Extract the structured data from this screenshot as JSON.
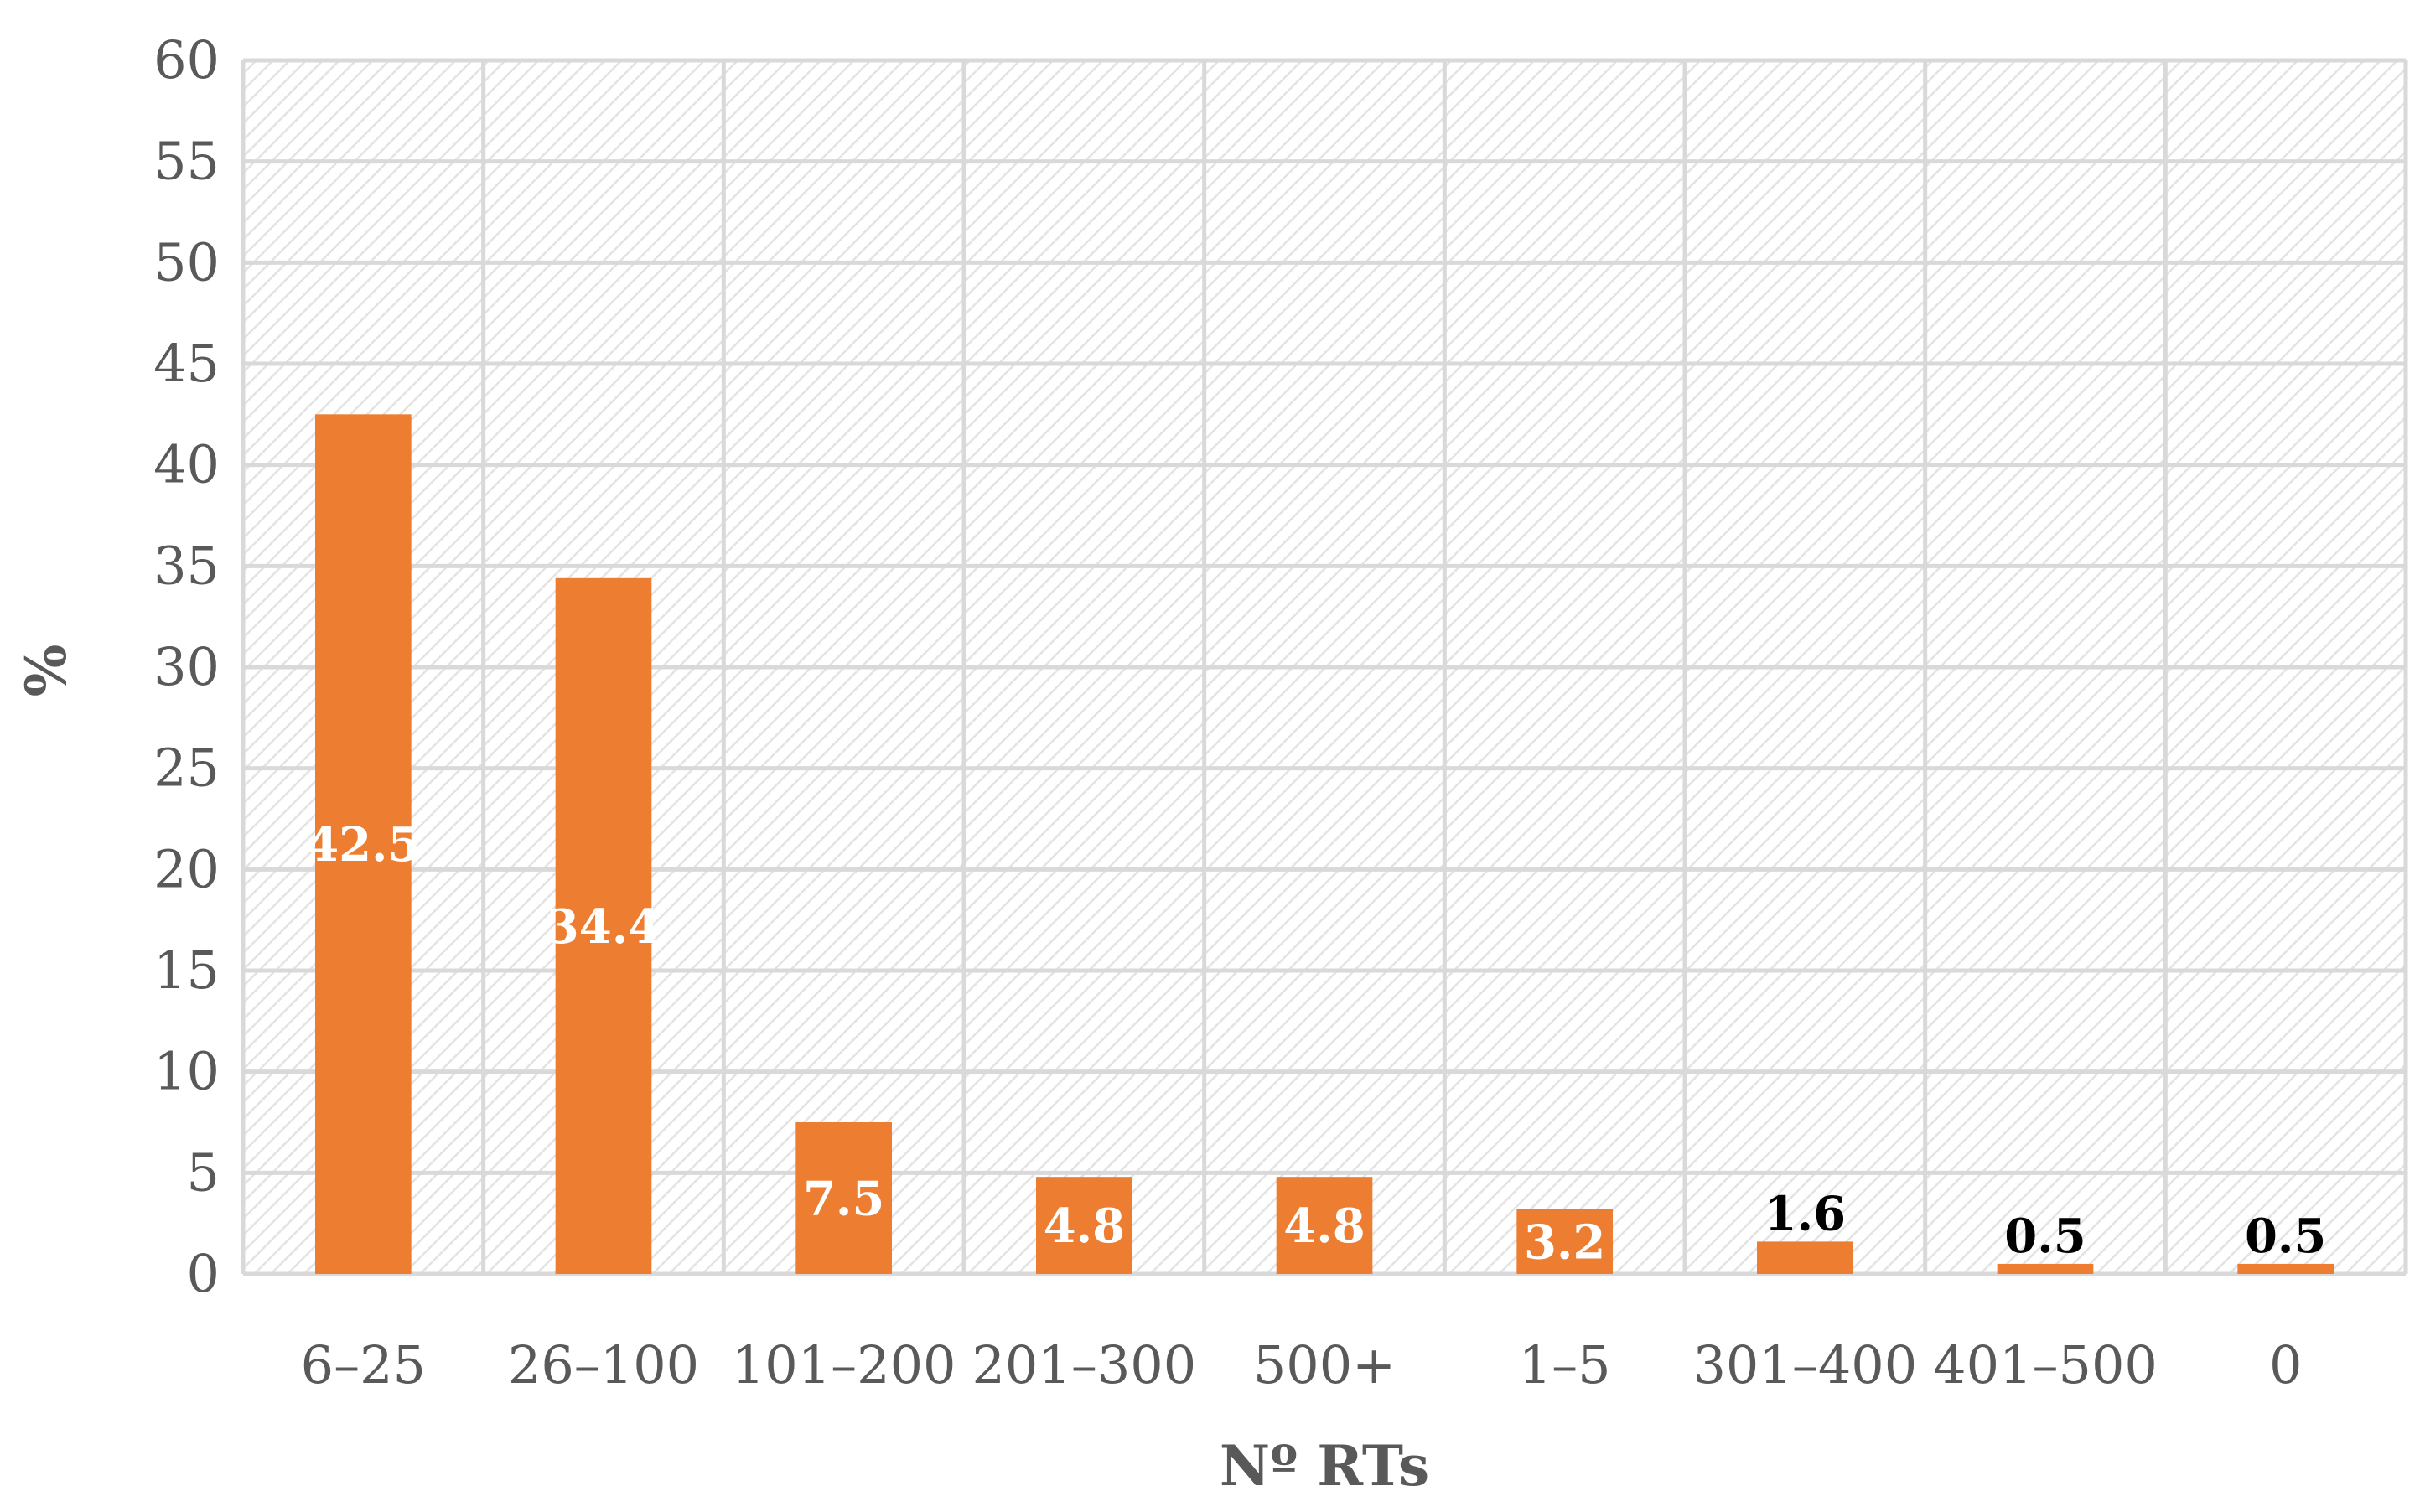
{
  "chart_data": {
    "type": "bar",
    "title": "",
    "xlabel": "Nº RTs",
    "ylabel": "%",
    "categories": [
      "6–25",
      "26–100",
      "101–200",
      "201–300",
      "500+",
      "1–5",
      "301–400",
      "401–500",
      "0"
    ],
    "values": [
      42.5,
      34.4,
      7.5,
      4.8,
      4.8,
      3.2,
      1.6,
      0.5,
      0.5
    ],
    "data_labels": [
      "42.5",
      "34.4",
      "7.5",
      "4.8",
      "4.8",
      "3.2",
      "1.6",
      "0.5",
      "0.5"
    ],
    "ylim": [
      0,
      60
    ],
    "yticks": [
      "0",
      "5",
      "10",
      "15",
      "20",
      "25",
      "30",
      "35",
      "40",
      "45",
      "50",
      "55",
      "60"
    ],
    "grid": true,
    "legend": "none",
    "colors": {
      "bar": "#ED7D31",
      "grid": "#D9D9D9",
      "hatch": "#E3E3E3",
      "label_inside": "#FFFFFF",
      "label_outside": "#000000"
    }
  }
}
